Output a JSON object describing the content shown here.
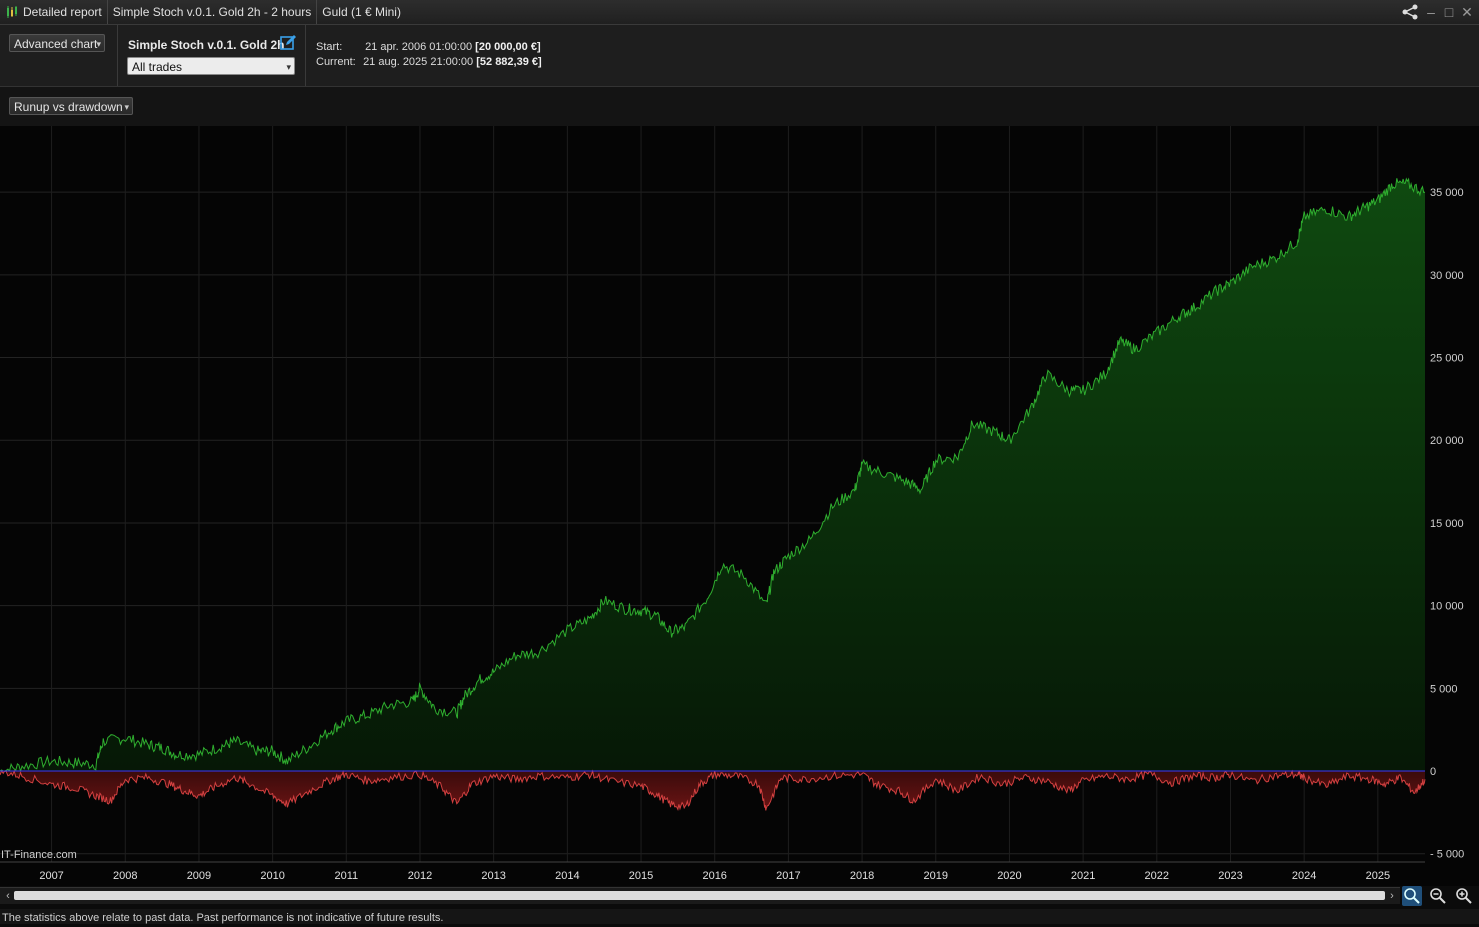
{
  "titlebar": {
    "report_label": "Detailed report",
    "strategy_tab": "Simple Stoch v.0.1. Gold 2h - 2 hours",
    "instrument_tab": "Guld (1 € Mini)"
  },
  "toolbar": {
    "chart_mode": "Advanced chart",
    "strategy_name": "Simple Stoch v.0.1. Gold 2h",
    "trades_filter": "All trades",
    "start_label": "Start:",
    "start_date": "21 apr. 2006 01:00:00",
    "start_value": "[20 000,00 €]",
    "current_label": "Current:",
    "current_date": "21 aug. 2025 21:00:00",
    "current_value": "[52 882,39 €]"
  },
  "view_select": "Runup vs drawdown",
  "watermark": "IT-Finance.com",
  "footer_note": "The statistics above relate to past data. Past performance is not indicative of future results.",
  "chart_data": {
    "type": "area",
    "title": "",
    "xlabel": "",
    "ylabel": "",
    "x_ticks": [
      "2007",
      "2008",
      "2009",
      "2010",
      "2011",
      "2012",
      "2013",
      "2014",
      "2015",
      "2016",
      "2017",
      "2018",
      "2019",
      "2020",
      "2021",
      "2022",
      "2023",
      "2024",
      "2025"
    ],
    "y_ticks": [
      "35 000",
      "30 000",
      "25 000",
      "20 000",
      "15 000",
      "10 000",
      "5 000",
      "0",
      "- 5 000"
    ],
    "ylim": [
      -5500,
      39000
    ],
    "xlim": [
      2006.3,
      2025.64
    ],
    "grid": true,
    "colors": {
      "runup": "#2fae2f",
      "drawdown": "#d24040",
      "zero_line": "#3a3aff"
    },
    "series": [
      {
        "key": "runup",
        "x": [
          2006.3,
          2006.6,
          2007.0,
          2007.3,
          2007.6,
          2007.7,
          2008.0,
          2008.3,
          2008.5,
          2008.7,
          2009.0,
          2009.3,
          2009.5,
          2009.8,
          2010.0,
          2010.2,
          2010.5,
          2010.8,
          2011.0,
          2011.3,
          2011.6,
          2011.9,
          2012.0,
          2012.2,
          2012.5,
          2012.6,
          2012.8,
          2013.0,
          2013.3,
          2013.6,
          2014.0,
          2014.3,
          2014.5,
          2014.8,
          2015.0,
          2015.2,
          2015.4,
          2015.6,
          2015.9,
          2016.1,
          2016.4,
          2016.7,
          2016.8,
          2017.0,
          2017.3,
          2017.6,
          2017.9,
          2018.0,
          2018.3,
          2018.6,
          2018.8,
          2019.0,
          2019.3,
          2019.5,
          2019.8,
          2020.0,
          2020.3,
          2020.5,
          2020.8,
          2021.0,
          2021.3,
          2021.5,
          2021.7,
          2022.0,
          2022.3,
          2022.5,
          2022.8,
          2023.0,
          2023.3,
          2023.6,
          2023.9,
          2024.0,
          2024.3,
          2024.6,
          2024.8,
          2025.0,
          2025.2,
          2025.4,
          2025.64
        ],
        "values": [
          0,
          300,
          600,
          500,
          400,
          1800,
          2000,
          1600,
          1400,
          1000,
          1000,
          1500,
          1800,
          1200,
          1200,
          600,
          1500,
          2500,
          3000,
          3400,
          4000,
          4200,
          5000,
          3800,
          3500,
          4500,
          5500,
          6000,
          7000,
          7200,
          8500,
          9200,
          10300,
          9800,
          9700,
          9400,
          8400,
          8700,
          10500,
          12500,
          11800,
          10000,
          12000,
          13000,
          14000,
          16000,
          17000,
          18500,
          18000,
          17500,
          17000,
          18800,
          19000,
          21000,
          20500,
          20000,
          22000,
          24000,
          23000,
          23000,
          24000,
          26000,
          25500,
          26500,
          27500,
          28000,
          29000,
          29500,
          30500,
          31000,
          32000,
          33500,
          34000,
          33500,
          34000,
          34500,
          35500,
          35500,
          35000
        ]
      },
      {
        "key": "drawdown",
        "x": [
          2006.3,
          2006.6,
          2007.0,
          2007.3,
          2007.6,
          2007.8,
          2008.0,
          2008.3,
          2008.6,
          2008.8,
          2009.0,
          2009.2,
          2009.5,
          2009.7,
          2010.0,
          2010.2,
          2010.5,
          2010.8,
          2011.0,
          2011.3,
          2011.6,
          2012.0,
          2012.3,
          2012.5,
          2012.7,
          2013.0,
          2013.3,
          2013.6,
          2014.0,
          2014.3,
          2014.6,
          2015.0,
          2015.2,
          2015.4,
          2015.6,
          2015.8,
          2016.0,
          2016.3,
          2016.6,
          2016.7,
          2016.9,
          2017.2,
          2017.6,
          2018.0,
          2018.2,
          2018.5,
          2018.7,
          2019.0,
          2019.3,
          2019.6,
          2019.9,
          2020.2,
          2020.5,
          2020.8,
          2021.0,
          2021.3,
          2021.6,
          2021.9,
          2022.2,
          2022.5,
          2022.8,
          2023.0,
          2023.3,
          2023.6,
          2023.9,
          2024.0,
          2024.3,
          2024.6,
          2024.9,
          2025.1,
          2025.3,
          2025.5,
          2025.64
        ],
        "values": [
          0,
          -300,
          -800,
          -1000,
          -1500,
          -1800,
          -500,
          -400,
          -800,
          -1200,
          -1500,
          -1000,
          -400,
          -800,
          -1500,
          -2000,
          -1200,
          -500,
          -200,
          -600,
          -400,
          -200,
          -1000,
          -2000,
          -800,
          -300,
          -500,
          -300,
          -400,
          -200,
          -600,
          -900,
          -1400,
          -2000,
          -2200,
          -800,
          -200,
          -300,
          -800,
          -2300,
          -400,
          -500,
          -300,
          -200,
          -800,
          -1200,
          -1800,
          -500,
          -1200,
          -300,
          -800,
          -400,
          -600,
          -1200,
          -600,
          -300,
          -500,
          -200,
          -700,
          -300,
          -400,
          -200,
          -600,
          -300,
          -200,
          -400,
          -900,
          -300,
          -500,
          -800,
          -400,
          -1300,
          -500
        ]
      }
    ]
  }
}
